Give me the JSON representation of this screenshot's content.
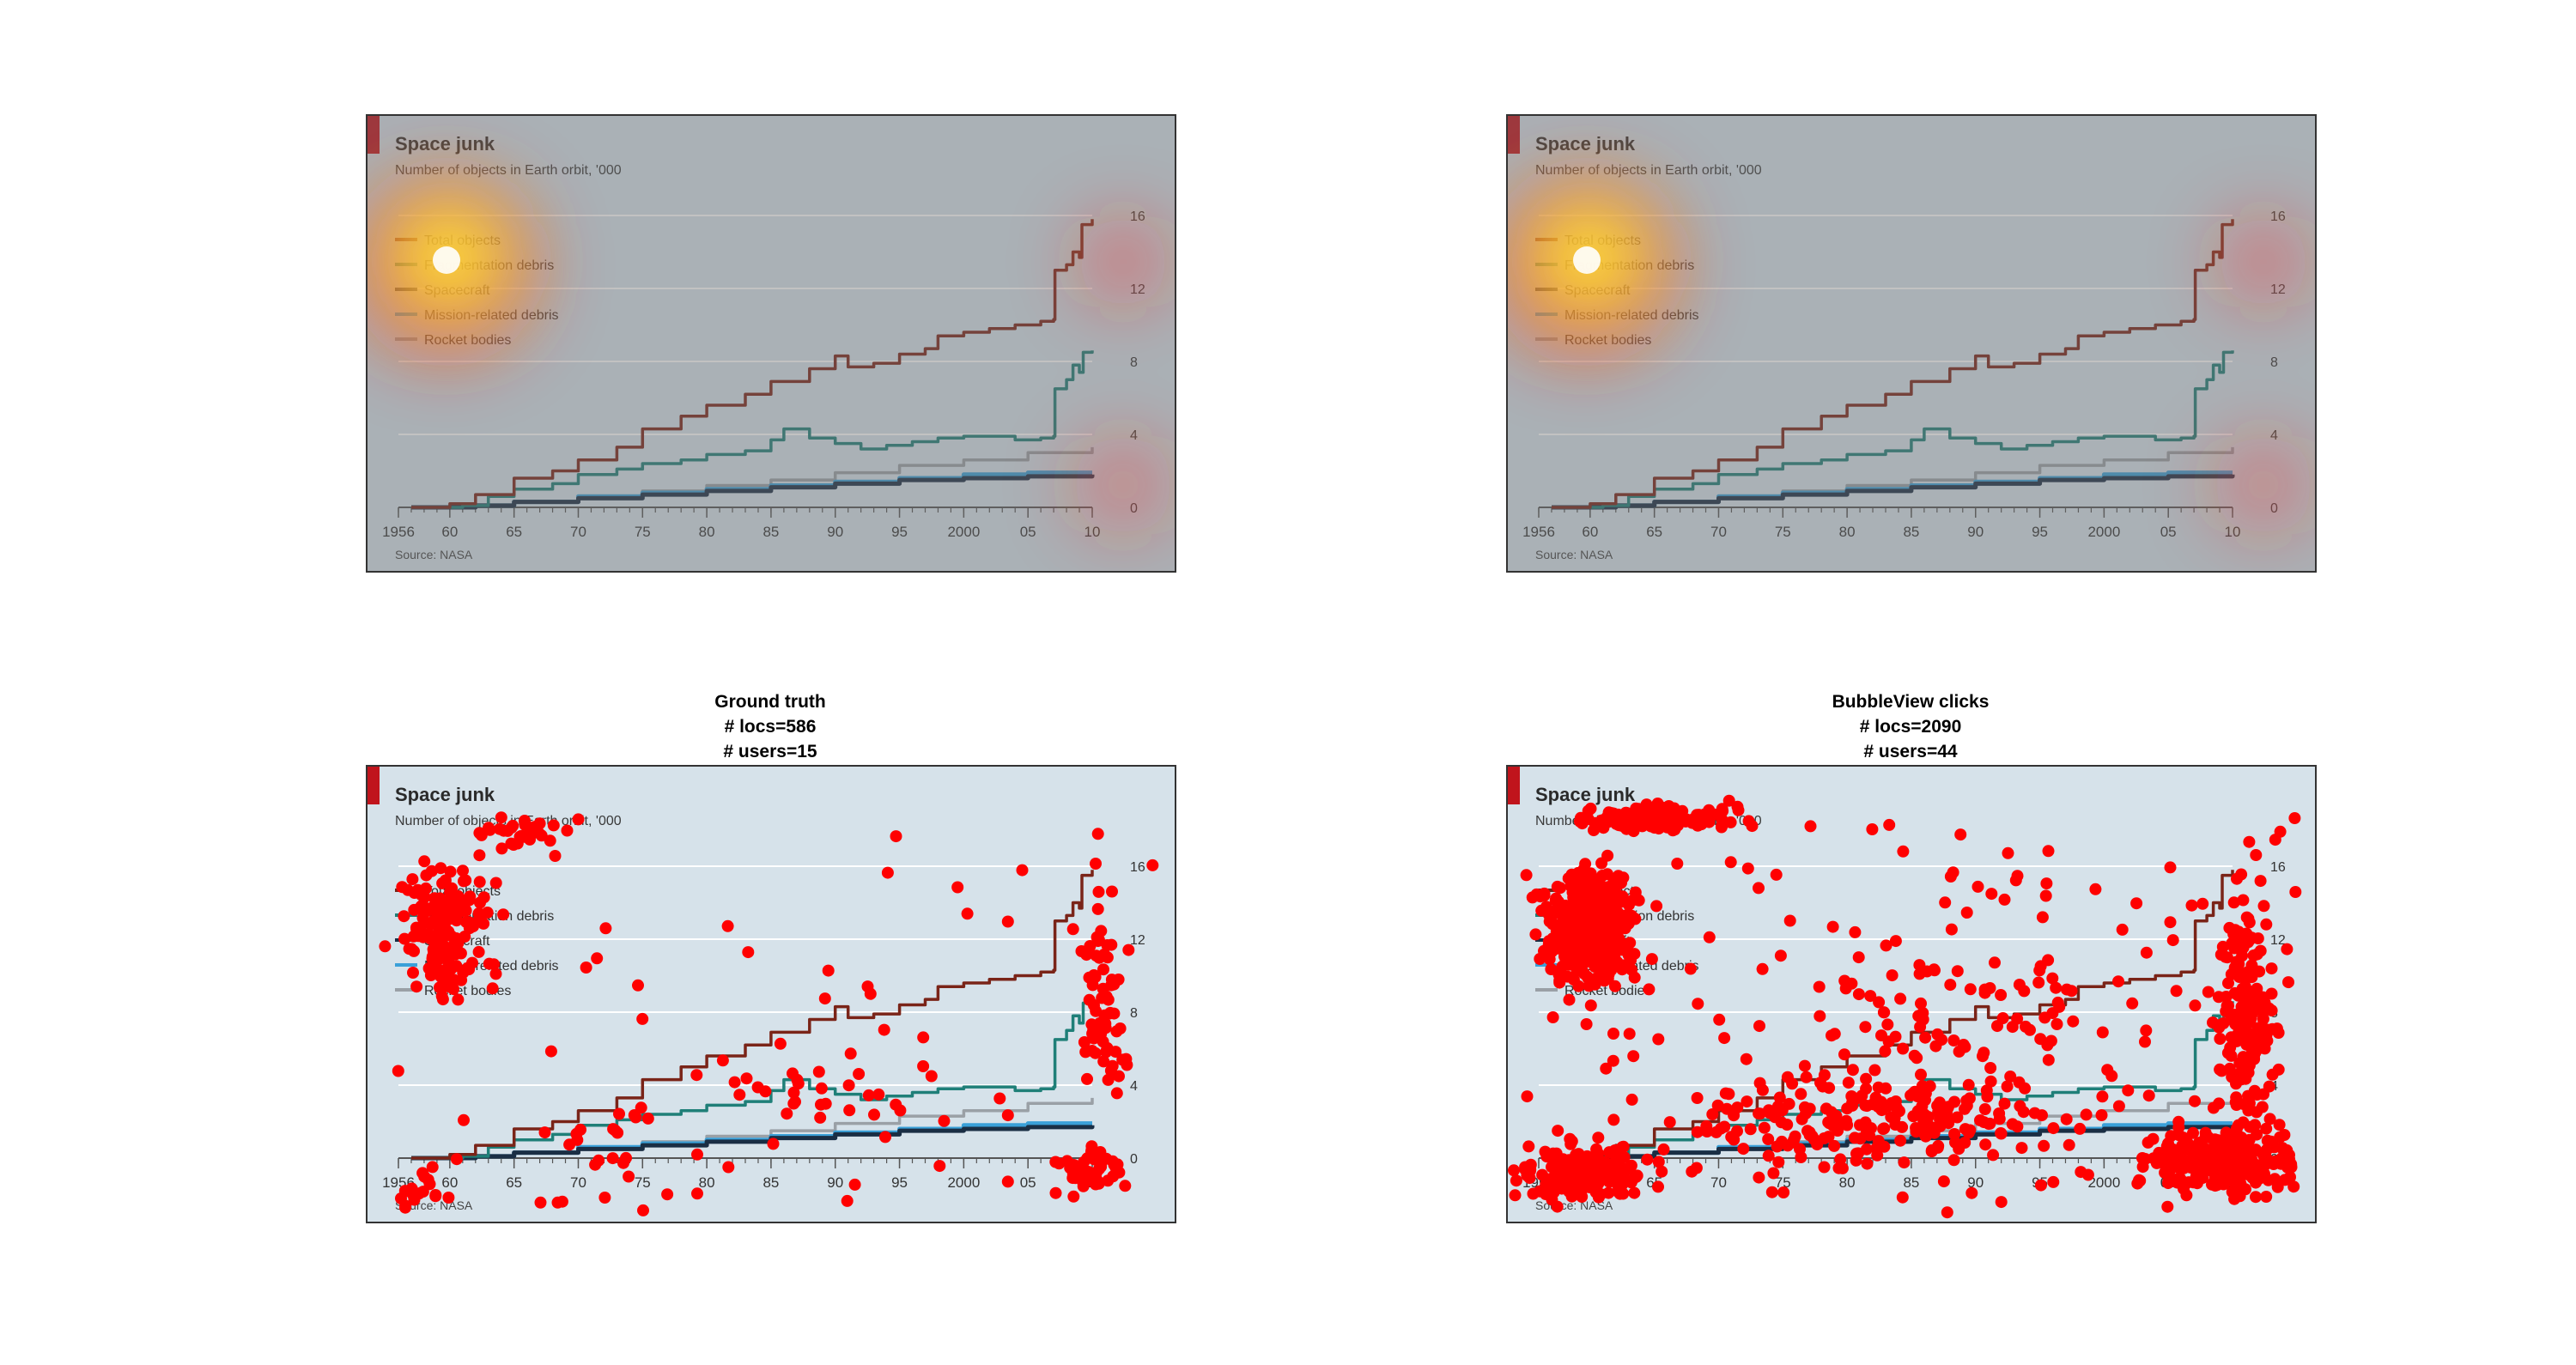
{
  "chart": {
    "title": "Space junk",
    "subtitle": "Number of objects in Earth orbit, '000",
    "source": "Source: NASA",
    "x_ticks": [
      "1956",
      "60",
      "65",
      "70",
      "75",
      "80",
      "85",
      "90",
      "95",
      "2000",
      "05",
      "10"
    ],
    "y_ticks": [
      "0",
      "4",
      "8",
      "12",
      "16"
    ]
  },
  "panels": [
    {
      "title_lines": [],
      "kind": "heatmap"
    },
    {
      "title_lines": [],
      "kind": "heatmap"
    },
    {
      "title_lines": [
        "Ground truth",
        "# locs=586",
        "# users=15"
      ],
      "kind": "clicks"
    },
    {
      "title_lines": [
        "BubbleView clicks",
        "# locs=2090",
        "# users=44"
      ],
      "kind": "clicks"
    }
  ],
  "colors": {
    "panel_bg": "#d6e2ea",
    "total_objects": "#7a2418",
    "fragmentation_debris": "#1f7f78",
    "spacecraft": "#1a2e44",
    "mission_related_debris": "#3aa0d8",
    "rocket_bodies": "#9aa0a6",
    "click_dot": "#ff0000",
    "accent_bar": "#c0141c"
  },
  "chart_data": {
    "type": "line",
    "title": "Space junk",
    "subtitle": "Number of objects in Earth orbit, '000",
    "ylim": [
      0,
      16
    ],
    "xlim": [
      1956,
      2010
    ],
    "grid": true,
    "legend_position": "top-left",
    "series": [
      {
        "name": "Total objects",
        "color": "#7a2418",
        "points": [
          [
            1957,
            0
          ],
          [
            1960,
            0.2
          ],
          [
            1962,
            0.7
          ],
          [
            1965,
            1.6
          ],
          [
            1968,
            2.0
          ],
          [
            1970,
            2.6
          ],
          [
            1973,
            3.3
          ],
          [
            1975,
            4.3
          ],
          [
            1978,
            5.0
          ],
          [
            1980,
            5.6
          ],
          [
            1983,
            6.2
          ],
          [
            1985,
            6.9
          ],
          [
            1988,
            7.6
          ],
          [
            1990,
            8.3
          ],
          [
            1991,
            7.7
          ],
          [
            1993,
            7.9
          ],
          [
            1995,
            8.4
          ],
          [
            1997,
            8.7
          ],
          [
            1998,
            9.4
          ],
          [
            2000,
            9.6
          ],
          [
            2002,
            9.8
          ],
          [
            2004,
            10.0
          ],
          [
            2006,
            10.2
          ],
          [
            2007,
            10.3
          ],
          [
            2007.1,
            13.0
          ],
          [
            2008,
            13.3
          ],
          [
            2008.5,
            14.0
          ],
          [
            2009,
            13.7
          ],
          [
            2009.2,
            15.5
          ],
          [
            2010,
            15.8
          ]
        ]
      },
      {
        "name": "Fragmentation debris",
        "color": "#1f7f78",
        "points": [
          [
            1957,
            0
          ],
          [
            1961,
            0.1
          ],
          [
            1963,
            0.6
          ],
          [
            1965,
            1.0
          ],
          [
            1968,
            1.3
          ],
          [
            1970,
            1.8
          ],
          [
            1973,
            2.1
          ],
          [
            1975,
            2.4
          ],
          [
            1978,
            2.6
          ],
          [
            1980,
            2.9
          ],
          [
            1983,
            3.1
          ],
          [
            1985,
            3.7
          ],
          [
            1986,
            4.3
          ],
          [
            1988,
            3.8
          ],
          [
            1990,
            3.5
          ],
          [
            1992,
            3.2
          ],
          [
            1994,
            3.4
          ],
          [
            1996,
            3.6
          ],
          [
            1998,
            3.8
          ],
          [
            2000,
            3.9
          ],
          [
            2002,
            3.9
          ],
          [
            2004,
            3.7
          ],
          [
            2006,
            3.8
          ],
          [
            2007,
            3.9
          ],
          [
            2007.1,
            6.5
          ],
          [
            2008,
            7.0
          ],
          [
            2008.5,
            7.8
          ],
          [
            2009,
            7.4
          ],
          [
            2009.3,
            8.5
          ],
          [
            2010,
            8.6
          ]
        ]
      },
      {
        "name": "Spacecraft",
        "color": "#1a2e44",
        "points": [
          [
            1957,
            0
          ],
          [
            1962,
            0.1
          ],
          [
            1965,
            0.3
          ],
          [
            1970,
            0.5
          ],
          [
            1975,
            0.7
          ],
          [
            1980,
            0.9
          ],
          [
            1985,
            1.1
          ],
          [
            1990,
            1.3
          ],
          [
            1995,
            1.5
          ],
          [
            2000,
            1.6
          ],
          [
            2005,
            1.7
          ],
          [
            2010,
            1.8
          ]
        ]
      },
      {
        "name": "Mission-related debris",
        "color": "#3aa0d8",
        "points": [
          [
            1957,
            0
          ],
          [
            1962,
            0.1
          ],
          [
            1965,
            0.3
          ],
          [
            1970,
            0.6
          ],
          [
            1975,
            0.8
          ],
          [
            1980,
            1.0
          ],
          [
            1985,
            1.2
          ],
          [
            1990,
            1.4
          ],
          [
            1995,
            1.6
          ],
          [
            2000,
            1.8
          ],
          [
            2005,
            1.9
          ],
          [
            2010,
            1.9
          ]
        ]
      },
      {
        "name": "Rocket bodies",
        "color": "#9aa0a6",
        "points": [
          [
            1957,
            0
          ],
          [
            1962,
            0.1
          ],
          [
            1965,
            0.3
          ],
          [
            1970,
            0.6
          ],
          [
            1975,
            0.9
          ],
          [
            1980,
            1.2
          ],
          [
            1985,
            1.5
          ],
          [
            1990,
            1.9
          ],
          [
            1995,
            2.3
          ],
          [
            2000,
            2.6
          ],
          [
            2005,
            3.0
          ],
          [
            2010,
            3.3
          ]
        ]
      }
    ]
  }
}
